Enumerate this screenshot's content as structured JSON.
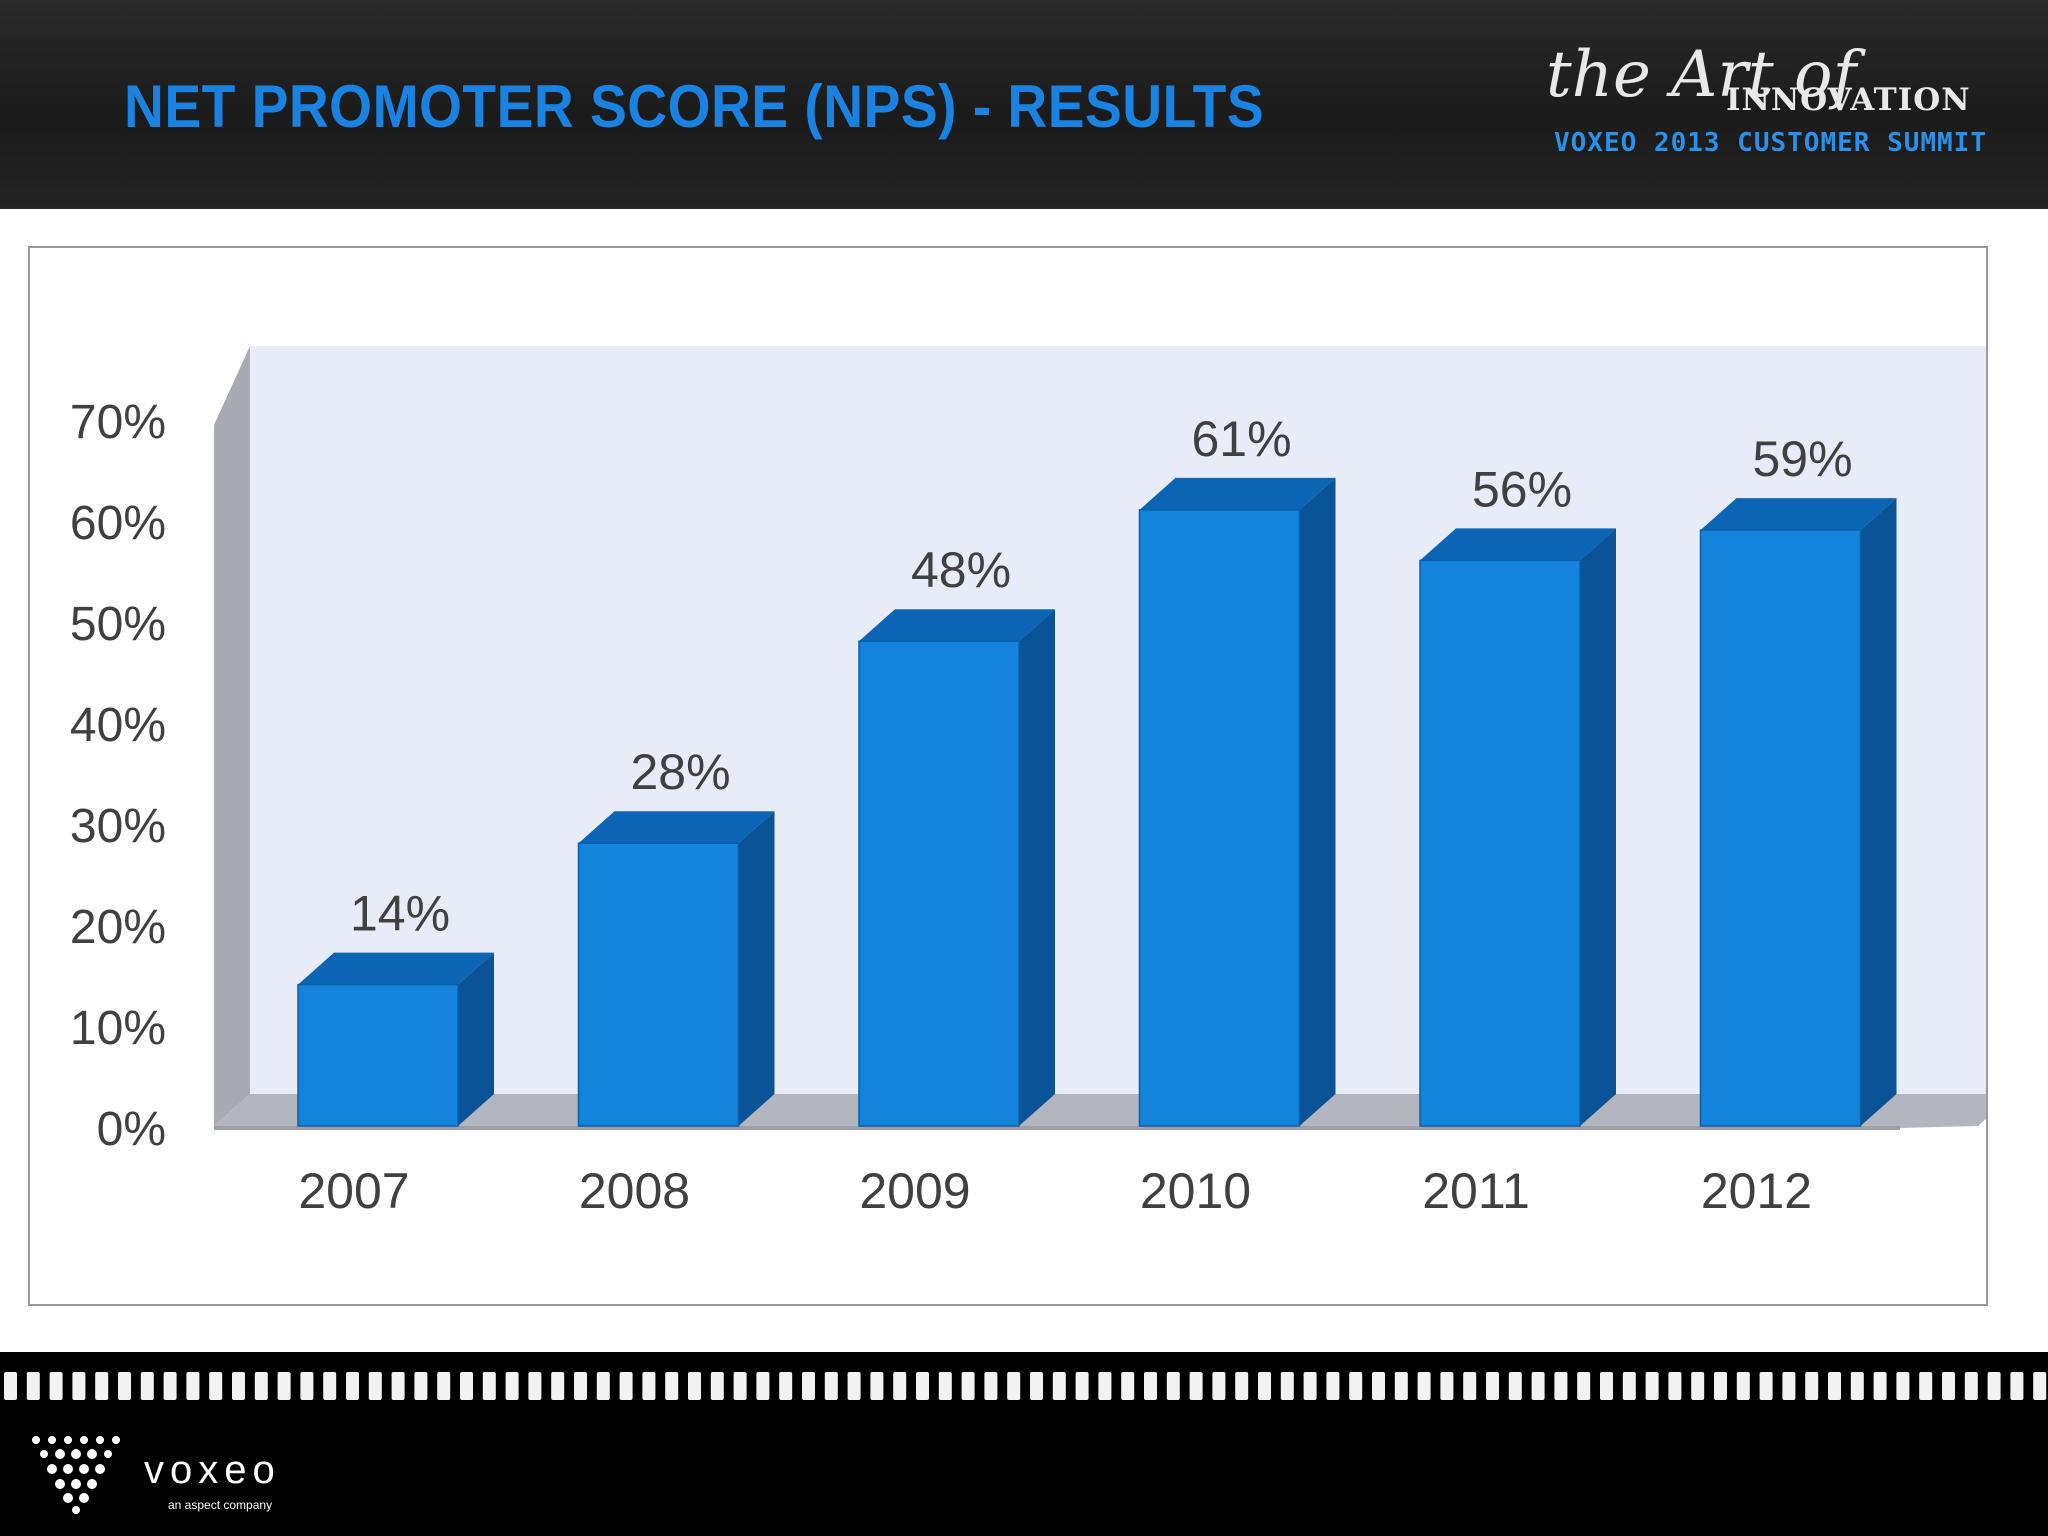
{
  "slide": {
    "title": "NET PROMOTER SCORE (NPS) - RESULTS"
  },
  "event_logo": {
    "script": "the Art of",
    "name": "INNOVATION",
    "subtitle": "VOXEO 2013 CUSTOMER SUMMIT"
  },
  "footer": {
    "brand": "voxeo",
    "tagline": "an aspect company"
  },
  "colors": {
    "accent": "#1a82e0",
    "bar_front": "#1383dc",
    "bar_side": "#0a5396",
    "bar_top": "#0c64b4",
    "plot_back": "#e8ebf8",
    "axis_gray": "#a9aab2"
  },
  "chart_data": {
    "type": "bar",
    "style": "3d",
    "categories": [
      "2007",
      "2008",
      "2009",
      "2010",
      "2011",
      "2012"
    ],
    "values": [
      14,
      28,
      48,
      61,
      56,
      59
    ],
    "data_labels": [
      "14%",
      "28%",
      "48%",
      "61%",
      "56%",
      "59%"
    ],
    "ylim": [
      0,
      70
    ],
    "y_ticks": [
      "0%",
      "10%",
      "20%",
      "30%",
      "40%",
      "50%",
      "60%",
      "70%"
    ],
    "xlabel": "",
    "ylabel": "",
    "legend": "none",
    "grid": false
  }
}
